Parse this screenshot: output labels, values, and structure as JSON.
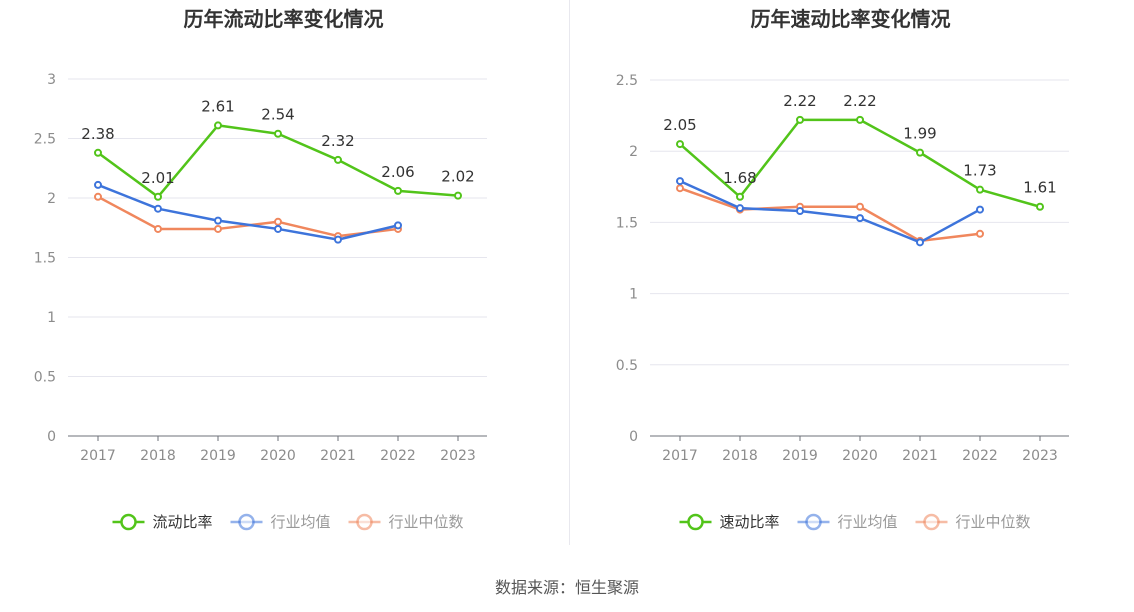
{
  "source": "数据来源：恒生聚源",
  "chart_data": [
    {
      "type": "line",
      "title": "历年流动比率变化情况",
      "categories": [
        "2017",
        "2018",
        "2019",
        "2020",
        "2021",
        "2022",
        "2023"
      ],
      "ylim": [
        0,
        3
      ],
      "yticks": [
        0,
        0.5,
        1,
        1.5,
        2,
        2.5,
        3
      ],
      "ytick_labels": [
        "0",
        "0.5",
        "1",
        "1.5",
        "2",
        "2.5",
        "3"
      ],
      "grid": true,
      "legend_position": "bottom",
      "series": [
        {
          "name": "流动比率",
          "color": "#52c41a",
          "values": [
            2.38,
            2.01,
            2.61,
            2.54,
            2.32,
            2.06,
            2.02
          ],
          "labels": [
            "2.38",
            "2.01",
            "2.61",
            "2.54",
            "2.32",
            "2.06",
            "2.02"
          ]
        },
        {
          "name": "行业均值",
          "color": "#3d74db",
          "values": [
            2.11,
            1.91,
            1.81,
            1.74,
            1.65,
            1.77,
            null
          ]
        },
        {
          "name": "行业中位数",
          "color": "#f0875d",
          "values": [
            2.01,
            1.74,
            1.74,
            1.8,
            1.68,
            1.74,
            null
          ]
        }
      ]
    },
    {
      "type": "line",
      "title": "历年速动比率变化情况",
      "categories": [
        "2017",
        "2018",
        "2019",
        "2020",
        "2021",
        "2022",
        "2023"
      ],
      "ylim": [
        0,
        2.5
      ],
      "yticks": [
        0,
        0.5,
        1,
        1.5,
        2,
        2.5
      ],
      "ytick_labels": [
        "0",
        "0.5",
        "1",
        "1.5",
        "2",
        "2.5"
      ],
      "grid": true,
      "legend_position": "bottom",
      "series": [
        {
          "name": "速动比率",
          "color": "#52c41a",
          "values": [
            2.05,
            1.68,
            2.22,
            2.22,
            1.99,
            1.73,
            1.61
          ],
          "labels": [
            "2.05",
            "1.68",
            "2.22",
            "2.22",
            "1.99",
            "1.73",
            "1.61"
          ]
        },
        {
          "name": "行业均值",
          "color": "#3d74db",
          "values": [
            1.79,
            1.6,
            1.58,
            1.53,
            1.36,
            1.59,
            null
          ]
        },
        {
          "name": "行业中位数",
          "color": "#f0875d",
          "values": [
            1.74,
            1.59,
            1.61,
            1.61,
            1.37,
            1.42,
            null
          ]
        }
      ]
    }
  ]
}
